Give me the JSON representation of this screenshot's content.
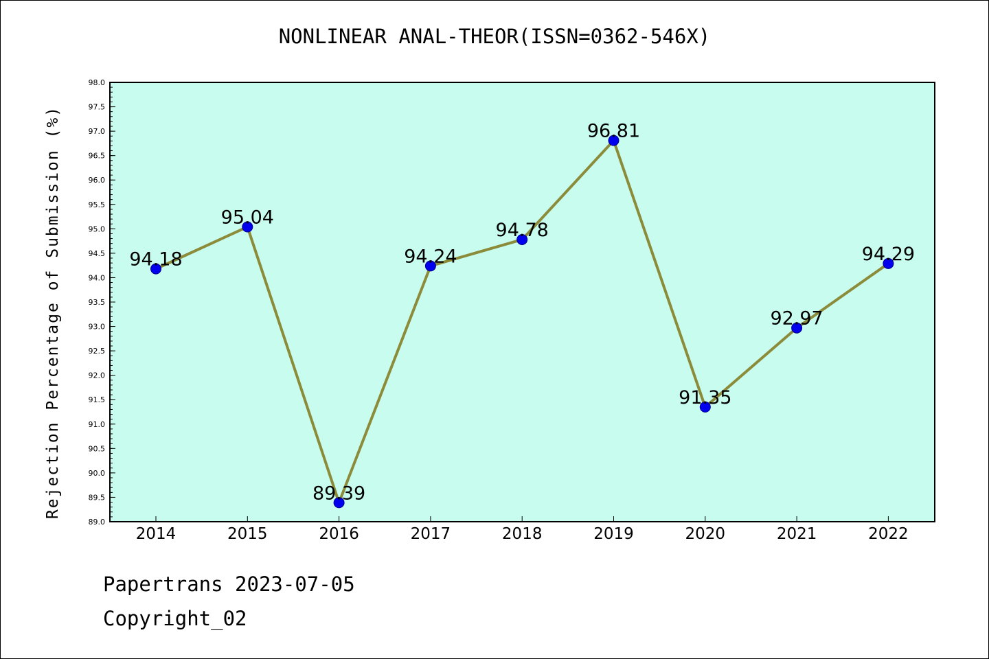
{
  "chart_data": {
    "type": "line",
    "title": "NONLINEAR ANAL-THEOR(ISSN=0362-546X)",
    "xlabel": "",
    "ylabel": "Rejection Percentage of Submission (%)",
    "categories": [
      "2014",
      "2015",
      "2016",
      "2017",
      "2018",
      "2019",
      "2020",
      "2021",
      "2022"
    ],
    "values": [
      94.18,
      95.04,
      89.39,
      94.24,
      94.78,
      96.81,
      91.35,
      92.97,
      94.29
    ],
    "data_labels": [
      "94.18",
      "95.04",
      "89.39",
      "94.24",
      "94.78",
      "96.81",
      "91.35",
      "92.97",
      "94.29"
    ],
    "ylim": [
      89.0,
      98.0
    ],
    "yticks": [
      "89.0",
      "89.5",
      "90.0",
      "90.5",
      "91.0",
      "91.5",
      "92.0",
      "92.5",
      "93.0",
      "93.5",
      "94.0",
      "94.5",
      "95.0",
      "95.5",
      "96.0",
      "96.5",
      "97.0",
      "97.5",
      "98.0"
    ],
    "grid": false,
    "colors": {
      "plot_background": "#c8fcee",
      "line": "#8b8b3a",
      "marker": "#0000ee",
      "marker_edge": "#00008b"
    }
  },
  "footer": {
    "line1": "Papertrans 2023-07-05",
    "line2": "Copyright_02"
  }
}
